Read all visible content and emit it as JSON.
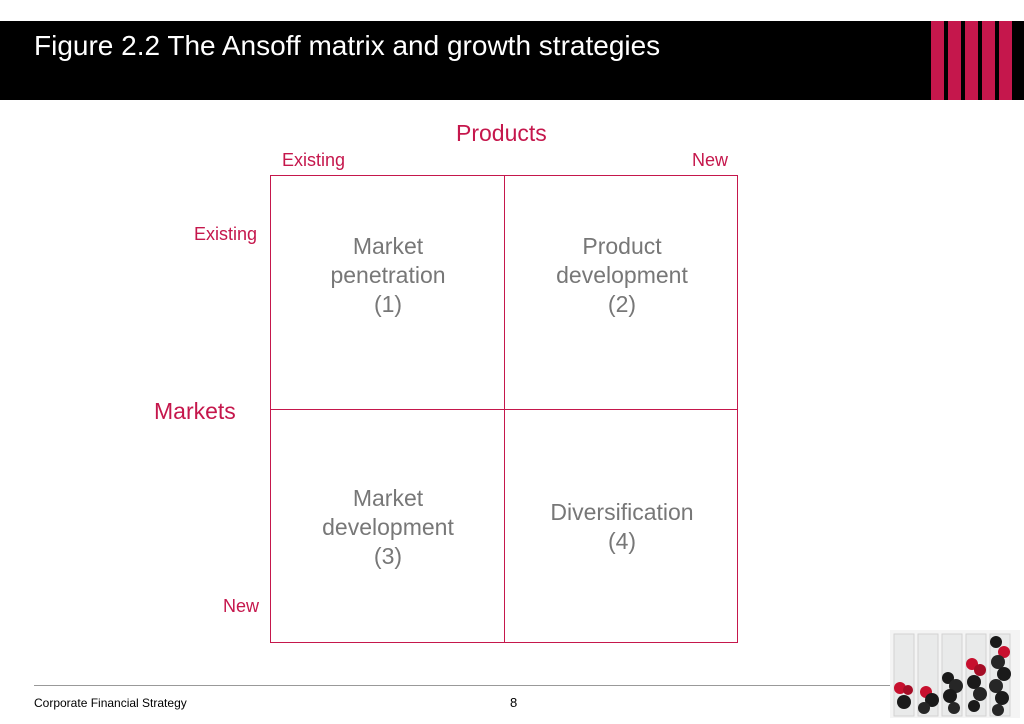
{
  "header": {
    "title": "Figure 2.2  The Ansoff matrix and growth strategies"
  },
  "colors": {
    "accent": "#c5174c",
    "header_background": "#000000",
    "cell_text": "#777777"
  },
  "matrix": {
    "products_heading": "Products",
    "products_existing": "Existing",
    "products_new": "New",
    "markets_heading": "Markets",
    "markets_existing": "Existing",
    "markets_new": "New",
    "cells": [
      {
        "lines": [
          "Market",
          "penetration",
          "(1)"
        ]
      },
      {
        "lines": [
          "Product",
          "development",
          "(2)"
        ]
      },
      {
        "lines": [
          "Market",
          "development",
          "(3)"
        ]
      },
      {
        "lines": [
          "Diversification",
          "(4)"
        ]
      }
    ]
  },
  "footer": {
    "left_text": "Corporate Financial Strategy",
    "page_number": "8"
  }
}
